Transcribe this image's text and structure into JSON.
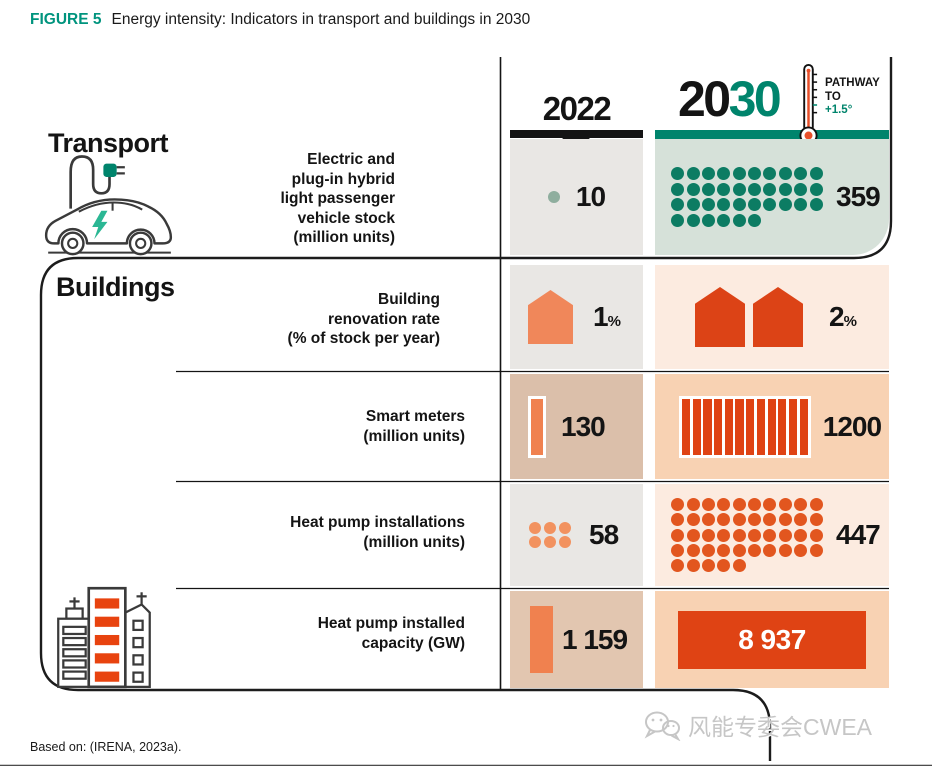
{
  "figure": {
    "label": "FIGURE 5",
    "title": "Energy intensity: Indicators in transport and buildings in 2030"
  },
  "header": {
    "col2022": "2022",
    "col2030_prefix": "20",
    "col2030_suffix": "30",
    "pathway": [
      "PATHWAY",
      "TO",
      "+1.5°"
    ]
  },
  "sections": {
    "transport": "Transport",
    "buildings": "Buildings"
  },
  "rows": [
    {
      "label_lines": [
        "Electric and",
        "plug-in hybrid",
        "light passenger",
        "vehicle stock",
        "(million units)"
      ],
      "value_2022": "10",
      "value_2030": "359",
      "icons_2022": 1,
      "icons_2030": 36
    },
    {
      "label_lines": [
        "Building",
        "renovation rate",
        "(% of stock per year)"
      ],
      "value_2022": "1",
      "unit_2022": "%",
      "value_2030": "2",
      "unit_2030": "%",
      "icons_2022": 1,
      "icons_2030": 2
    },
    {
      "label_lines": [
        "Smart meters",
        "(million units)"
      ],
      "value_2022": "130",
      "value_2030": "1200",
      "icons_2022": 1,
      "icons_2030": 12
    },
    {
      "label_lines": [
        "Heat pump installations",
        "(million units)"
      ],
      "value_2022": "58",
      "value_2030": "447",
      "icons_2022": 6,
      "icons_2030": 45
    },
    {
      "label_lines": [
        "Heat pump installed",
        "capacity (GW)"
      ],
      "value_2022": "1 159",
      "value_2030": "8 937"
    }
  ],
  "footer": {
    "source": "Based on: (IRENA, 2023a).",
    "watermark": "风能专委会CWEA"
  },
  "colors": {
    "teal": "#00846C",
    "teal_dot": "#0C7C63",
    "sage_bg": "#D6E1D9",
    "gray_bg": "#E9E7E4",
    "tan_bg": "#DBBFAA",
    "peach_bg": "#F8D2B3",
    "peach_light_bg": "#FCEBE0",
    "orange_light": "#F0875A",
    "red_orange": "#DF4314",
    "figure_label_teal": "#00947E"
  },
  "chart_data": {
    "type": "table",
    "title": "Energy intensity: Indicators in transport and buildings in 2030",
    "columns": [
      "Indicator",
      "2022",
      "2030 (Pathway to +1.5°)"
    ],
    "rows": [
      {
        "section": "Transport",
        "indicator": "Electric and plug-in hybrid light passenger vehicle stock (million units)",
        "v2022": 10,
        "v2030": 359
      },
      {
        "section": "Buildings",
        "indicator": "Building renovation rate (% of stock per year)",
        "v2022": 1,
        "v2030": 2
      },
      {
        "section": "Buildings",
        "indicator": "Smart meters (million units)",
        "v2022": 130,
        "v2030": 1200
      },
      {
        "section": "Buildings",
        "indicator": "Heat pump installations (million units)",
        "v2022": 58,
        "v2030": 447
      },
      {
        "section": "Buildings",
        "indicator": "Heat pump installed capacity (GW)",
        "v2022": 1159,
        "v2030": 8937
      }
    ],
    "source": "Based on: (IRENA, 2023a)."
  }
}
